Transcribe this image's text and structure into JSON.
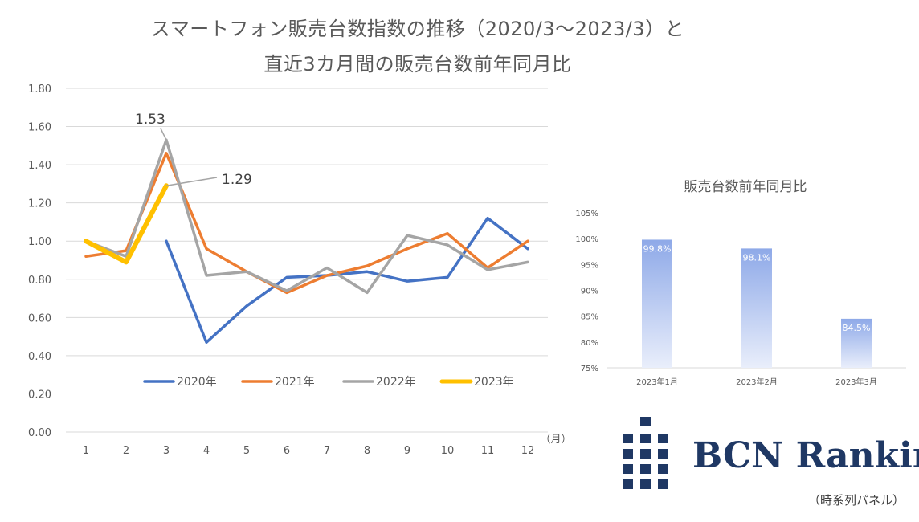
{
  "title": {
    "line1": "スマートフォン販売台数指数の推移（2020/3〜2023/3）と",
    "line2": "直近3カ月間の販売台数前年同月比"
  },
  "colors": {
    "2020": "#4472c4",
    "2021": "#ed7d31",
    "2022": "#a5a5a5",
    "2023": "#ffc000",
    "bar": "#8ea9e8",
    "logo": "#1f3864"
  },
  "chart_data": [
    {
      "type": "line",
      "x_unit_label": "（月）",
      "categories": [
        "1",
        "2",
        "3",
        "4",
        "5",
        "6",
        "7",
        "8",
        "9",
        "10",
        "11",
        "12"
      ],
      "yticks": [
        "0.00",
        "0.20",
        "0.40",
        "0.60",
        "0.80",
        "1.00",
        "1.20",
        "1.40",
        "1.60",
        "1.80"
      ],
      "ylim": [
        0,
        1.8
      ],
      "grid": true,
      "legend_position": "bottom-inside",
      "series": [
        {
          "name": "2020年",
          "values": [
            null,
            null,
            1.0,
            0.47,
            0.66,
            0.81,
            0.82,
            0.84,
            0.79,
            0.81,
            1.12,
            0.96
          ]
        },
        {
          "name": "2021年",
          "values": [
            0.92,
            0.95,
            1.46,
            0.96,
            0.84,
            0.73,
            0.82,
            0.87,
            0.96,
            1.04,
            0.86,
            1.0
          ]
        },
        {
          "name": "2022年",
          "values": [
            1.0,
            0.92,
            1.53,
            0.82,
            0.84,
            0.74,
            0.86,
            0.73,
            1.03,
            0.98,
            0.85,
            0.89
          ]
        },
        {
          "name": "2023年",
          "values": [
            1.0,
            0.89,
            1.29,
            null,
            null,
            null,
            null,
            null,
            null,
            null,
            null,
            null
          ]
        }
      ],
      "annotations": [
        {
          "text": "1.53",
          "series": "2022年",
          "category": "3"
        },
        {
          "text": "1.29",
          "series": "2023年",
          "category": "3"
        }
      ]
    },
    {
      "type": "bar",
      "title": "販売台数前年同月比",
      "categories": [
        "2023年1月",
        "2023年2月",
        "2023年3月"
      ],
      "values": [
        99.8,
        98.1,
        84.5
      ],
      "labels": [
        "99.8%",
        "98.1%",
        "84.5%"
      ],
      "yticks": [
        "75%",
        "80%",
        "85%",
        "90%",
        "95%",
        "100%",
        "105%"
      ],
      "ylim": [
        75,
        105
      ]
    }
  ],
  "logo": {
    "text": "BCN Ranking"
  },
  "footer": {
    "note": "（時系列パネル）"
  }
}
